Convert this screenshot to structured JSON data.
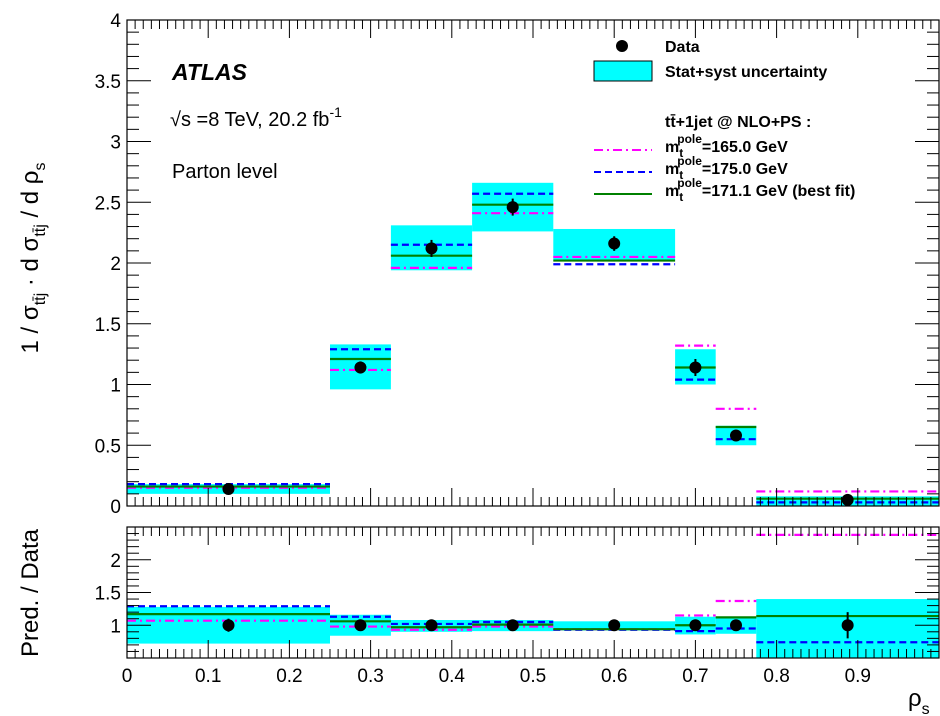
{
  "atlas_label": "ATLAS",
  "energy_label": "√s =8 TeV, 20.2  fb",
  "energy_sup": "-1",
  "level_label": "Parton level",
  "legend": {
    "data": "Data",
    "uncertainty": "Stat+syst uncertainty",
    "header": "tt̄+1jet @ NLO+PS :",
    "m165": "=165.0 GeV",
    "m175": "=175.0 GeV",
    "m1711": "=171.1 GeV (best fit)",
    "m_symbol": "m",
    "m_sub": "t",
    "m_sup": "pole"
  },
  "axis": {
    "ylabel_top": "1 / σ · d σ / d ρ",
    "ylabel_bottom": "Pred. / Data",
    "xlabel": "ρ",
    "xlabel_sub": "s",
    "sub_ttj": "tt̄j",
    "sub_s": "s"
  },
  "colors": {
    "band": "#00ffff",
    "m165": "#ff00ff",
    "m175": "#0000ff",
    "m1711": "#008000",
    "data": "#000000"
  },
  "chart_data": {
    "type": "histogram",
    "x_edges": [
      0,
      0.25,
      0.325,
      0.425,
      0.525,
      0.675,
      0.725,
      0.775,
      1.0
    ],
    "x_ticks": [
      "0",
      "0.1",
      "0.2",
      "0.3",
      "0.4",
      "0.5",
      "0.6",
      "0.7",
      "0.8",
      "0.9"
    ],
    "xlim": [
      0,
      1.0
    ],
    "top": {
      "ylim": [
        0,
        4
      ],
      "y_ticks": [
        "0",
        "0.5",
        "1",
        "1.5",
        "2",
        "2.5",
        "3",
        "3.5",
        "4"
      ],
      "data": {
        "x": [
          0.125,
          0.2875,
          0.375,
          0.475,
          0.6,
          0.7,
          0.75,
          0.8875
        ],
        "y": [
          0.14,
          1.14,
          2.12,
          2.46,
          2.16,
          1.14,
          0.58,
          0.05
        ],
        "err": [
          0.02,
          0.05,
          0.07,
          0.07,
          0.06,
          0.07,
          0.04,
          0.02
        ]
      },
      "uncertainty_band": {
        "low": [
          0.1,
          0.96,
          1.94,
          2.26,
          2.02,
          1.0,
          0.5,
          0.0
        ],
        "high": [
          0.18,
          1.33,
          2.31,
          2.66,
          2.28,
          1.29,
          0.66,
          0.08
        ]
      },
      "series": [
        {
          "name": "m_t^pole=165.0 GeV",
          "values": [
            0.15,
            1.12,
            1.96,
            2.41,
            2.05,
            1.32,
            0.8,
            0.12
          ]
        },
        {
          "name": "m_t^pole=175.0 GeV",
          "values": [
            0.18,
            1.29,
            2.15,
            2.57,
            1.99,
            1.04,
            0.55,
            0.03
          ]
        },
        {
          "name": "m_t^pole=171.1 GeV (best fit)",
          "values": [
            0.16,
            1.21,
            2.06,
            2.48,
            2.02,
            1.14,
            0.65,
            0.06
          ]
        }
      ]
    },
    "ratio": {
      "ylim": [
        0.5,
        2.5
      ],
      "y_ticks": [
        "1",
        "1.5",
        "2"
      ],
      "data": {
        "y": [
          1.0,
          1.0,
          1.0,
          1.0,
          1.0,
          1.0,
          1.0,
          1.0
        ],
        "err": [
          0.1,
          0.05,
          0.03,
          0.03,
          0.03,
          0.06,
          0.07,
          0.2
        ]
      },
      "uncertainty_band": {
        "low": [
          0.72,
          0.84,
          0.9,
          0.91,
          0.92,
          0.86,
          0.87,
          0.0
        ],
        "high": [
          1.28,
          1.16,
          1.08,
          1.08,
          1.06,
          1.13,
          1.13,
          1.4
        ]
      },
      "series": [
        {
          "name": "m_t^pole=165.0 GeV",
          "values": [
            1.07,
            0.98,
            0.93,
            0.98,
            0.94,
            1.15,
            1.37,
            2.38
          ]
        },
        {
          "name": "m_t^pole=175.0 GeV",
          "values": [
            1.29,
            1.13,
            1.02,
            1.05,
            0.93,
            0.91,
            0.95,
            0.74
          ]
        },
        {
          "name": "m_t^pole=171.1 GeV (best fit)",
          "values": [
            1.17,
            1.06,
            0.97,
            1.01,
            0.94,
            1.0,
            1.12,
            1.14
          ]
        }
      ]
    }
  }
}
